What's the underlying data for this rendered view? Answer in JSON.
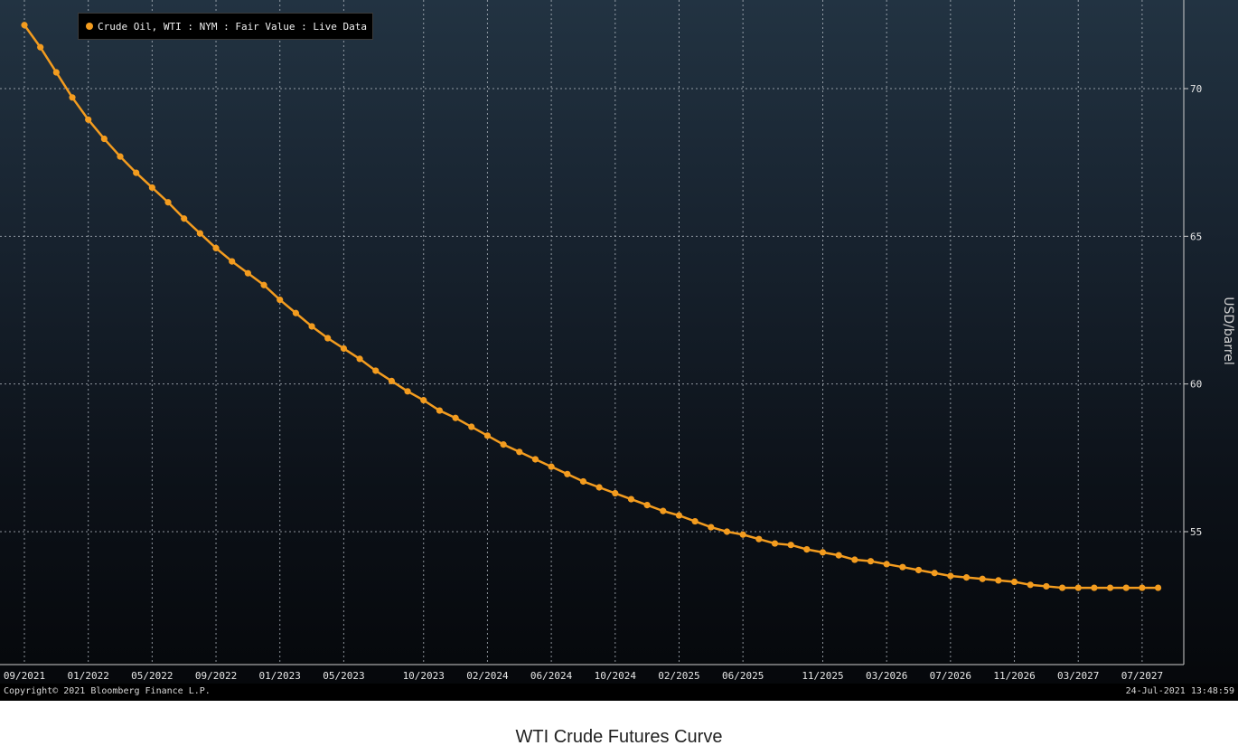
{
  "chart_data": {
    "type": "line",
    "legend": [
      "Crude Oil, WTI : NYM : Fair Value : Live Data"
    ],
    "legend_position": "top-left",
    "ylabel": "USD/barrel",
    "ylim": [
      50.5,
      73.0
    ],
    "yticks": [
      55,
      60,
      65,
      70
    ],
    "grid": true,
    "xtick_labels": [
      "09/2021",
      "01/2022",
      "05/2022",
      "09/2022",
      "01/2023",
      "05/2023",
      "10/2023",
      "02/2024",
      "06/2024",
      "10/2024",
      "02/2025",
      "06/2025",
      "11/2025",
      "03/2026",
      "07/2026",
      "11/2026",
      "03/2027",
      "07/2027"
    ],
    "xtick_month_index": [
      0,
      4,
      8,
      12,
      16,
      20,
      25,
      29,
      33,
      37,
      41,
      45,
      50,
      54,
      58,
      62,
      66,
      70
    ],
    "x_start": "09/2021",
    "x_end": "10/2027",
    "series": [
      {
        "name": "Crude Oil, WTI : NYM : Fair Value : Live Data",
        "color": "#f39c1f",
        "values": [
          72.15,
          71.4,
          70.55,
          69.7,
          68.95,
          68.3,
          67.7,
          67.15,
          66.65,
          66.15,
          65.6,
          65.1,
          64.6,
          64.15,
          63.75,
          63.35,
          62.85,
          62.4,
          61.95,
          61.55,
          61.2,
          60.85,
          60.45,
          60.1,
          59.75,
          59.45,
          59.1,
          58.85,
          58.55,
          58.25,
          57.95,
          57.7,
          57.45,
          57.2,
          56.95,
          56.7,
          56.5,
          56.3,
          56.1,
          55.9,
          55.7,
          55.55,
          55.35,
          55.15,
          55.0,
          54.9,
          54.75,
          54.6,
          54.55,
          54.4,
          54.3,
          54.2,
          54.05,
          54.0,
          53.9,
          53.8,
          53.7,
          53.6,
          53.5,
          53.45,
          53.4,
          53.35,
          53.3,
          53.2,
          53.15,
          53.1,
          53.1,
          53.1,
          53.1,
          53.1,
          53.1,
          53.1
        ]
      }
    ]
  },
  "footer": {
    "copyright": "Copyright© 2021 Bloomberg Finance L.P.",
    "timestamp": "24-Jul-2021 13:48:59"
  },
  "caption": "WTI Crude Futures Curve"
}
